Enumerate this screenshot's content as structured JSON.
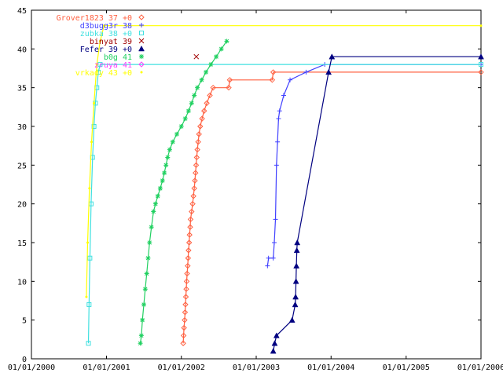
{
  "chart_data": {
    "type": "line",
    "title": "",
    "xlabel": "",
    "ylabel": "",
    "x_type": "date",
    "xlim": [
      "2000-01-01",
      "2006-01-01"
    ],
    "ylim": [
      0,
      45
    ],
    "grid": false,
    "legend_position": "top-right",
    "xticks": [
      "01/01/2000",
      "01/01/2001",
      "01/01/2002",
      "01/01/2003",
      "01/01/2004",
      "01/01/2005",
      "01/01/2006"
    ],
    "yticks": [
      0,
      5,
      10,
      15,
      20,
      25,
      30,
      35,
      40,
      45
    ],
    "series": [
      {
        "name": "Grover1823 37 +0",
        "color": "#ff6040",
        "marker": "diamond",
        "points": [
          [
            "2002-01-10",
            2
          ],
          [
            "2002-01-12",
            3
          ],
          [
            "2002-01-14",
            4
          ],
          [
            "2002-01-17",
            5
          ],
          [
            "2002-01-19",
            6
          ],
          [
            "2002-01-21",
            7
          ],
          [
            "2002-01-23",
            8
          ],
          [
            "2002-01-25",
            9
          ],
          [
            "2002-01-27",
            10
          ],
          [
            "2002-01-29",
            11
          ],
          [
            "2002-02-01",
            12
          ],
          [
            "2002-02-03",
            13
          ],
          [
            "2002-02-05",
            14
          ],
          [
            "2002-02-08",
            15
          ],
          [
            "2002-02-10",
            16
          ],
          [
            "2002-02-13",
            17
          ],
          [
            "2002-02-15",
            18
          ],
          [
            "2002-02-20",
            19
          ],
          [
            "2002-02-25",
            20
          ],
          [
            "2002-03-01",
            21
          ],
          [
            "2002-03-05",
            22
          ],
          [
            "2002-03-08",
            23
          ],
          [
            "2002-03-11",
            24
          ],
          [
            "2002-03-14",
            25
          ],
          [
            "2002-03-17",
            26
          ],
          [
            "2002-03-20",
            27
          ],
          [
            "2002-03-24",
            28
          ],
          [
            "2002-03-28",
            29
          ],
          [
            "2002-04-03",
            30
          ],
          [
            "2002-04-12",
            31
          ],
          [
            "2002-04-22",
            32
          ],
          [
            "2002-05-05",
            33
          ],
          [
            "2002-05-20",
            34
          ],
          [
            "2002-06-05",
            35
          ],
          [
            "2002-08-20",
            35
          ],
          [
            "2002-08-25",
            36
          ],
          [
            "2003-03-20",
            36
          ],
          [
            "2003-03-25",
            37
          ],
          [
            "2006-01-01",
            37
          ]
        ]
      },
      {
        "name": "d3bugg3r 38",
        "color": "#4040ff",
        "marker": "plus",
        "points": [
          [
            "2003-02-25",
            12
          ],
          [
            "2003-03-02",
            13
          ],
          [
            "2003-03-25",
            13
          ],
          [
            "2003-03-30",
            15
          ],
          [
            "2003-04-05",
            18
          ],
          [
            "2003-04-10",
            25
          ],
          [
            "2003-04-15",
            28
          ],
          [
            "2003-04-20",
            31
          ],
          [
            "2003-04-25",
            32
          ],
          [
            "2003-05-15",
            34
          ],
          [
            "2003-06-15",
            36
          ],
          [
            "2003-09-01",
            37
          ],
          [
            "2003-12-01",
            38
          ],
          [
            "2006-01-01",
            38
          ]
        ]
      },
      {
        "name": "zubka 38 +0",
        "color": "#40e0e0",
        "marker": "square",
        "points": [
          [
            "2000-10-05",
            2
          ],
          [
            "2000-10-08",
            7
          ],
          [
            "2000-10-12",
            13
          ],
          [
            "2000-10-18",
            20
          ],
          [
            "2000-10-25",
            26
          ],
          [
            "2000-11-01",
            30
          ],
          [
            "2000-11-08",
            33
          ],
          [
            "2000-11-15",
            35
          ],
          [
            "2000-11-22",
            37
          ],
          [
            "2000-12-01",
            38
          ],
          [
            "2006-01-01",
            38
          ]
        ]
      },
      {
        "name": "binyat 39",
        "color": "#a00000",
        "marker": "x",
        "points": [
          [
            "2002-03-15",
            39
          ]
        ]
      },
      {
        "name": "Fefer 39 +0",
        "color": "#000080",
        "marker": "triangle",
        "points": [
          [
            "2003-03-25",
            1
          ],
          [
            "2003-04-01",
            2
          ],
          [
            "2003-04-10",
            3
          ],
          [
            "2003-06-25",
            5
          ],
          [
            "2003-07-10",
            7
          ],
          [
            "2003-07-12",
            8
          ],
          [
            "2003-07-14",
            10
          ],
          [
            "2003-07-16",
            12
          ],
          [
            "2003-07-18",
            14
          ],
          [
            "2003-07-20",
            15
          ],
          [
            "2003-12-20",
            37
          ],
          [
            "2004-01-05",
            39
          ],
          [
            "2006-01-01",
            39
          ]
        ]
      },
      {
        "name": "b0g 41",
        "color": "#20d060",
        "marker": "star",
        "points": [
          [
            "2001-06-15",
            2
          ],
          [
            "2001-06-20",
            3
          ],
          [
            "2001-06-25",
            5
          ],
          [
            "2001-07-02",
            7
          ],
          [
            "2001-07-09",
            9
          ],
          [
            "2001-07-16",
            11
          ],
          [
            "2001-07-23",
            13
          ],
          [
            "2001-07-30",
            15
          ],
          [
            "2001-08-08",
            17
          ],
          [
            "2001-08-18",
            19
          ],
          [
            "2001-08-28",
            20
          ],
          [
            "2001-09-08",
            21
          ],
          [
            "2001-09-20",
            22
          ],
          [
            "2001-10-01",
            23
          ],
          [
            "2001-10-10",
            24
          ],
          [
            "2001-10-18",
            25
          ],
          [
            "2001-10-26",
            26
          ],
          [
            "2001-11-05",
            27
          ],
          [
            "2001-11-20",
            28
          ],
          [
            "2001-12-10",
            29
          ],
          [
            "2002-01-01",
            30
          ],
          [
            "2002-01-20",
            31
          ],
          [
            "2002-02-05",
            32
          ],
          [
            "2002-02-20",
            33
          ],
          [
            "2002-03-05",
            34
          ],
          [
            "2002-03-20",
            35
          ],
          [
            "2002-04-10",
            36
          ],
          [
            "2002-05-01",
            37
          ],
          [
            "2002-05-25",
            38
          ],
          [
            "2002-06-20",
            39
          ],
          [
            "2002-07-15",
            40
          ],
          [
            "2002-08-10",
            41
          ]
        ]
      },
      {
        "name": "zruya 41",
        "color": "#ff40ff",
        "marker": "diamond-open",
        "points": []
      },
      {
        "name": "vrkady 43 +0",
        "color": "#ffff00",
        "marker": "dot",
        "points": [
          [
            "2000-09-25",
            8
          ],
          [
            "2000-10-01",
            15
          ],
          [
            "2000-10-10",
            22
          ],
          [
            "2000-10-20",
            28
          ],
          [
            "2000-11-01",
            33
          ],
          [
            "2000-11-15",
            38
          ],
          [
            "2000-12-01",
            41
          ],
          [
            "2000-12-20",
            43
          ],
          [
            "2006-01-01",
            43
          ]
        ]
      }
    ]
  }
}
